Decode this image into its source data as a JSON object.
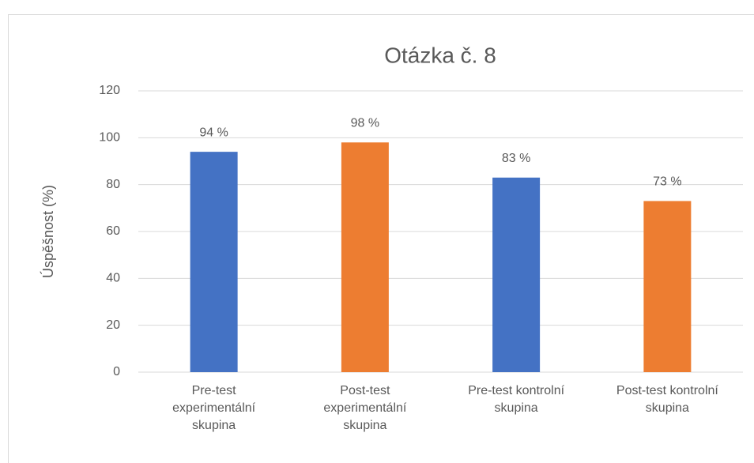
{
  "chart_data": {
    "type": "bar",
    "title": "Otázka č. 8",
    "y_label": "Úspěšnost (%)",
    "categories": [
      "Pre-test experimentální skupina",
      "Post-test experimentální skupina",
      "Pre-test kontrolní skupina",
      "Post-test kontrolní skupina"
    ],
    "values": [
      94,
      98,
      83,
      73
    ],
    "value_labels": [
      "94 %",
      "98 %",
      "83 %",
      "73 %"
    ],
    "colors": [
      "#4472c4",
      "#ed7d31",
      "#4472c4",
      "#ed7d31"
    ],
    "ylim": [
      0,
      120
    ],
    "yticks": [
      0,
      20,
      40,
      60,
      80,
      100,
      120
    ],
    "grid": true
  }
}
